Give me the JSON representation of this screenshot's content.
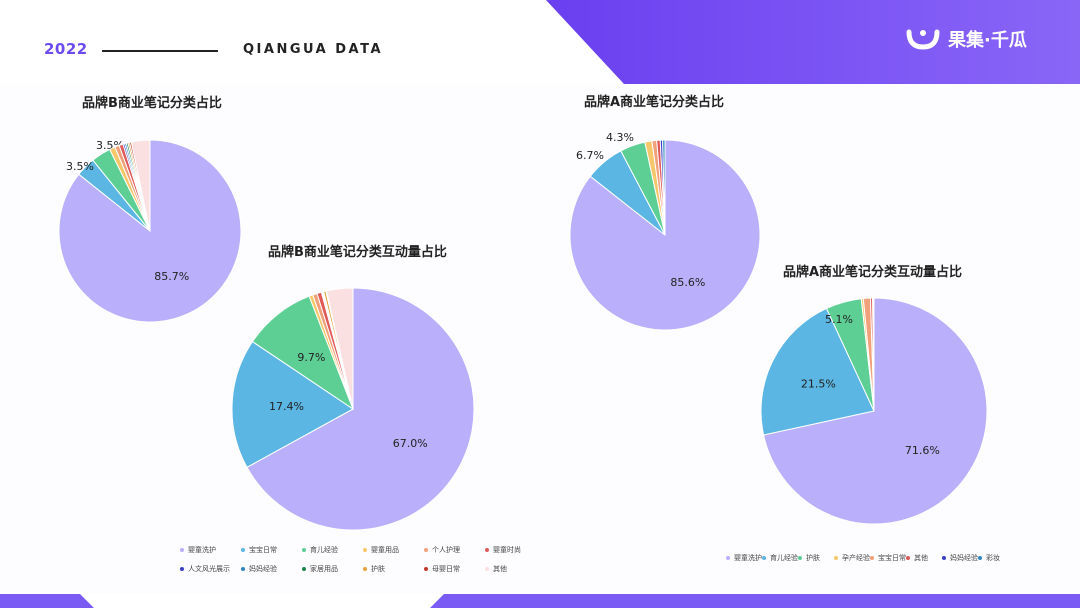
{
  "header": {
    "year": "2022",
    "brand_en": "QIANGUA DATA",
    "logo_text": "果集·千瓜",
    "accent": "#6c4cf0",
    "band_color": "#7a5cf5"
  },
  "chart_data": [
    {
      "type": "pie",
      "id": "b_share",
      "title": "品牌B商业笔记分类占比",
      "slices": [
        {
          "name": "婴童洗护",
          "value": 85.7,
          "label": "85.7%",
          "color": "#b9affa"
        },
        {
          "name": "宝宝日常",
          "value": 3.5,
          "label": "3.5%",
          "color": "#5bb6e3"
        },
        {
          "name": "育儿经验",
          "value": 3.5,
          "label": "3.5%",
          "color": "#5dcf95"
        },
        {
          "name": "婴童用品",
          "value": 1.0,
          "label": "",
          "color": "#f5c76a"
        },
        {
          "name": "个人护理",
          "value": 0.8,
          "label": "",
          "color": "#f0a07a"
        },
        {
          "name": "婴童时尚",
          "value": 0.7,
          "label": "",
          "color": "#e05a5a"
        },
        {
          "name": "人文风光展示",
          "value": 0.3,
          "label": "",
          "color": "#3b3fc4"
        },
        {
          "name": "妈妈经验",
          "value": 0.3,
          "label": "",
          "color": "#2e86c1"
        },
        {
          "name": "家居用品",
          "value": 0.3,
          "label": "",
          "color": "#1e8449"
        },
        {
          "name": "护肤",
          "value": 0.3,
          "label": "",
          "color": "#e6a23c"
        },
        {
          "name": "母婴日常",
          "value": 0.3,
          "label": "",
          "color": "#c0392b"
        },
        {
          "name": "其他",
          "value": 3.3,
          "label": "",
          "color": "#fbe0e2"
        }
      ]
    },
    {
      "type": "pie",
      "id": "b_interaction",
      "title": "品牌B商业笔记分类互动量占比",
      "slices": [
        {
          "name": "婴童洗护",
          "value": 67.0,
          "label": "67.0%",
          "color": "#b9affa"
        },
        {
          "name": "宝宝日常",
          "value": 17.4,
          "label": "17.4%",
          "color": "#5bb6e3"
        },
        {
          "name": "育儿经验",
          "value": 9.7,
          "label": "9.7%",
          "color": "#5dcf95"
        },
        {
          "name": "婴童用品",
          "value": 0.5,
          "label": "",
          "color": "#f5c76a"
        },
        {
          "name": "个人护理",
          "value": 0.6,
          "label": "",
          "color": "#f0a07a"
        },
        {
          "name": "婴童时尚",
          "value": 0.6,
          "label": "",
          "color": "#e05a5a"
        },
        {
          "name": "人文风光展示",
          "value": 0.1,
          "label": "",
          "color": "#3b3fc4"
        },
        {
          "name": "妈妈经验",
          "value": 0.1,
          "label": "",
          "color": "#2e86c1"
        },
        {
          "name": "家居用品",
          "value": 0.1,
          "label": "",
          "color": "#1e8449"
        },
        {
          "name": "护肤",
          "value": 0.3,
          "label": "",
          "color": "#e6a23c"
        },
        {
          "name": "母婴日常",
          "value": 0.1,
          "label": "",
          "color": "#c0392b"
        },
        {
          "name": "其他",
          "value": 3.5,
          "label": "",
          "color": "#fbe0e2"
        }
      ]
    },
    {
      "type": "pie",
      "id": "a_share",
      "title": "品牌A商业笔记分类占比",
      "slices": [
        {
          "name": "婴童洗护",
          "value": 85.6,
          "label": "85.6%",
          "color": "#b9affa"
        },
        {
          "name": "育儿经验",
          "value": 6.7,
          "label": "6.7%",
          "color": "#5bb6e3"
        },
        {
          "name": "护肤",
          "value": 4.3,
          "label": "4.3%",
          "color": "#5dcf95"
        },
        {
          "name": "孕产经验",
          "value": 1.2,
          "label": "",
          "color": "#f5c76a"
        },
        {
          "name": "宝宝日常",
          "value": 0.8,
          "label": "",
          "color": "#f0a07a"
        },
        {
          "name": "其他",
          "value": 0.6,
          "label": "",
          "color": "#e05a5a"
        },
        {
          "name": "妈妈经验",
          "value": 0.4,
          "label": "",
          "color": "#3b3fc4"
        },
        {
          "name": "彩妆",
          "value": 0.4,
          "label": "",
          "color": "#2e86c1"
        }
      ]
    },
    {
      "type": "pie",
      "id": "a_interaction",
      "title": "品牌A商业笔记分类互动量占比",
      "slices": [
        {
          "name": "婴童洗护",
          "value": 71.6,
          "label": "71.6%",
          "color": "#b9affa"
        },
        {
          "name": "育儿经验",
          "value": 21.5,
          "label": "21.5%",
          "color": "#5bb6e3"
        },
        {
          "name": "护肤",
          "value": 5.1,
          "label": "5.1%",
          "color": "#5dcf95"
        },
        {
          "name": "孕产经验",
          "value": 0.3,
          "label": "",
          "color": "#f5c76a"
        },
        {
          "name": "宝宝日常",
          "value": 1.0,
          "label": "",
          "color": "#f0a07a"
        },
        {
          "name": "其他",
          "value": 0.3,
          "label": "",
          "color": "#e05a5a"
        },
        {
          "name": "妈妈经验",
          "value": 0.1,
          "label": "",
          "color": "#3b3fc4"
        },
        {
          "name": "彩妆",
          "value": 0.1,
          "label": "",
          "color": "#2e86c1"
        }
      ]
    }
  ],
  "legend_b": [
    {
      "name": "婴童洗护",
      "color": "#b9affa"
    },
    {
      "name": "宝宝日常",
      "color": "#5bb6e3"
    },
    {
      "name": "育儿经验",
      "color": "#5dcf95"
    },
    {
      "name": "婴童用品",
      "color": "#f5c76a"
    },
    {
      "name": "个人护理",
      "color": "#f0a07a"
    },
    {
      "name": "婴童时尚",
      "color": "#e05a5a"
    },
    {
      "name": "人文风光展示",
      "color": "#3b3fc4"
    },
    {
      "name": "妈妈经验",
      "color": "#2e86c1"
    },
    {
      "name": "家居用品",
      "color": "#1e8449"
    },
    {
      "name": "护肤",
      "color": "#e6a23c"
    },
    {
      "name": "母婴日常",
      "color": "#c0392b"
    },
    {
      "name": "其他",
      "color": "#fbe0e2"
    }
  ],
  "legend_a": [
    {
      "name": "婴童洗护",
      "color": "#b9affa"
    },
    {
      "name": "育儿经验",
      "color": "#5bb6e3"
    },
    {
      "name": "护肤",
      "color": "#5dcf95"
    },
    {
      "name": "孕产经验",
      "color": "#f5c76a"
    },
    {
      "name": "宝宝日常",
      "color": "#f0a07a"
    },
    {
      "name": "其他",
      "color": "#e05a5a"
    },
    {
      "name": "妈妈经验",
      "color": "#3b3fc4"
    },
    {
      "name": "彩妆",
      "color": "#2e86c1"
    }
  ]
}
